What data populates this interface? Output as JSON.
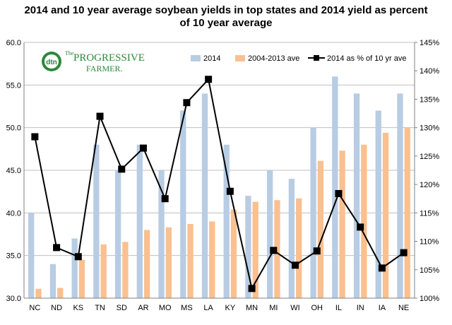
{
  "chart_data": {
    "type": "bar",
    "title_line1": "2014 and 10 year average soybean yields in top states and 2014 yield as percent",
    "title_line2": "of 10 year average",
    "categories": [
      "NC",
      "ND",
      "KS",
      "TN",
      "SD",
      "AR",
      "MO",
      "MS",
      "LA",
      "KY",
      "MN",
      "MI",
      "WI",
      "OH",
      "IL",
      "IN",
      "IA",
      "NE"
    ],
    "series": [
      {
        "name": "2014",
        "kind": "bar",
        "axis": "left",
        "color": "#b8cce4",
        "values": [
          40,
          34,
          37,
          48,
          45,
          48,
          45,
          52,
          54,
          48,
          42,
          45,
          44,
          50,
          56,
          54,
          52,
          54
        ]
      },
      {
        "name": "2004-2013 ave",
        "kind": "bar",
        "axis": "left",
        "color": "#fac090",
        "values": [
          31.1,
          31.2,
          34.5,
          36.3,
          36.6,
          38.0,
          38.3,
          38.7,
          39.0,
          40.4,
          41.3,
          41.5,
          41.7,
          46.1,
          47.3,
          48.0,
          49.4,
          50.0
        ]
      },
      {
        "name": "2014 as % of 10 yr ave",
        "kind": "line",
        "axis": "right",
        "color": "#000000",
        "values": [
          128.4,
          108.9,
          107.3,
          132.0,
          122.7,
          126.4,
          117.5,
          134.4,
          138.5,
          118.8,
          101.7,
          108.4,
          105.8,
          108.3,
          118.4,
          112.5,
          105.3,
          108.0
        ]
      }
    ],
    "left_axis": {
      "ylim": [
        30,
        60
      ],
      "ticks": [
        "30.0",
        "35.0",
        "40.0",
        "45.0",
        "50.0",
        "55.0",
        "60.0"
      ]
    },
    "right_axis": {
      "ylim": [
        100,
        145
      ],
      "ticks": [
        "100%",
        "105%",
        "110%",
        "115%",
        "120%",
        "125%",
        "130%",
        "135%",
        "140%",
        "145%"
      ]
    },
    "grid": "horizontal",
    "legend_position": "top"
  },
  "logo": {
    "mark": "dtn",
    "name_the": "The",
    "name_main": "PROGRESSIVE",
    "name_sub": "FARMER."
  }
}
